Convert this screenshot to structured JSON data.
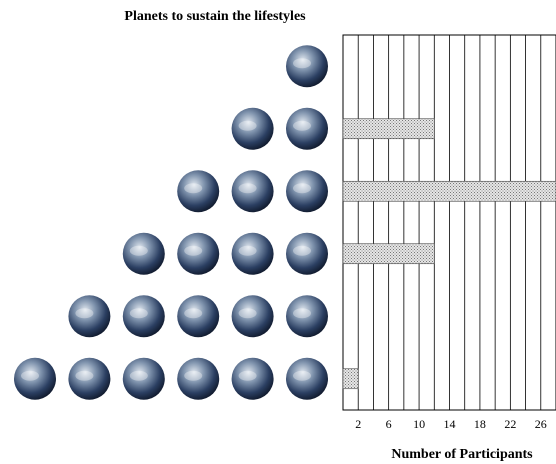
{
  "chart_data": {
    "type": "pictograph-bar",
    "title": "Planets to sustain the lifestyles",
    "x_label": "Number of Participants",
    "planets": [
      1,
      2,
      3,
      4,
      5,
      6
    ],
    "values": [
      0,
      12,
      28,
      12,
      0,
      2
    ],
    "xlim": [
      0,
      28
    ],
    "xticks": [
      2,
      6,
      10,
      14,
      18,
      22,
      26
    ],
    "minor_xticks": [
      0,
      4,
      8,
      12,
      16,
      20,
      24,
      28
    ],
    "grid": true,
    "color": "#999999"
  }
}
